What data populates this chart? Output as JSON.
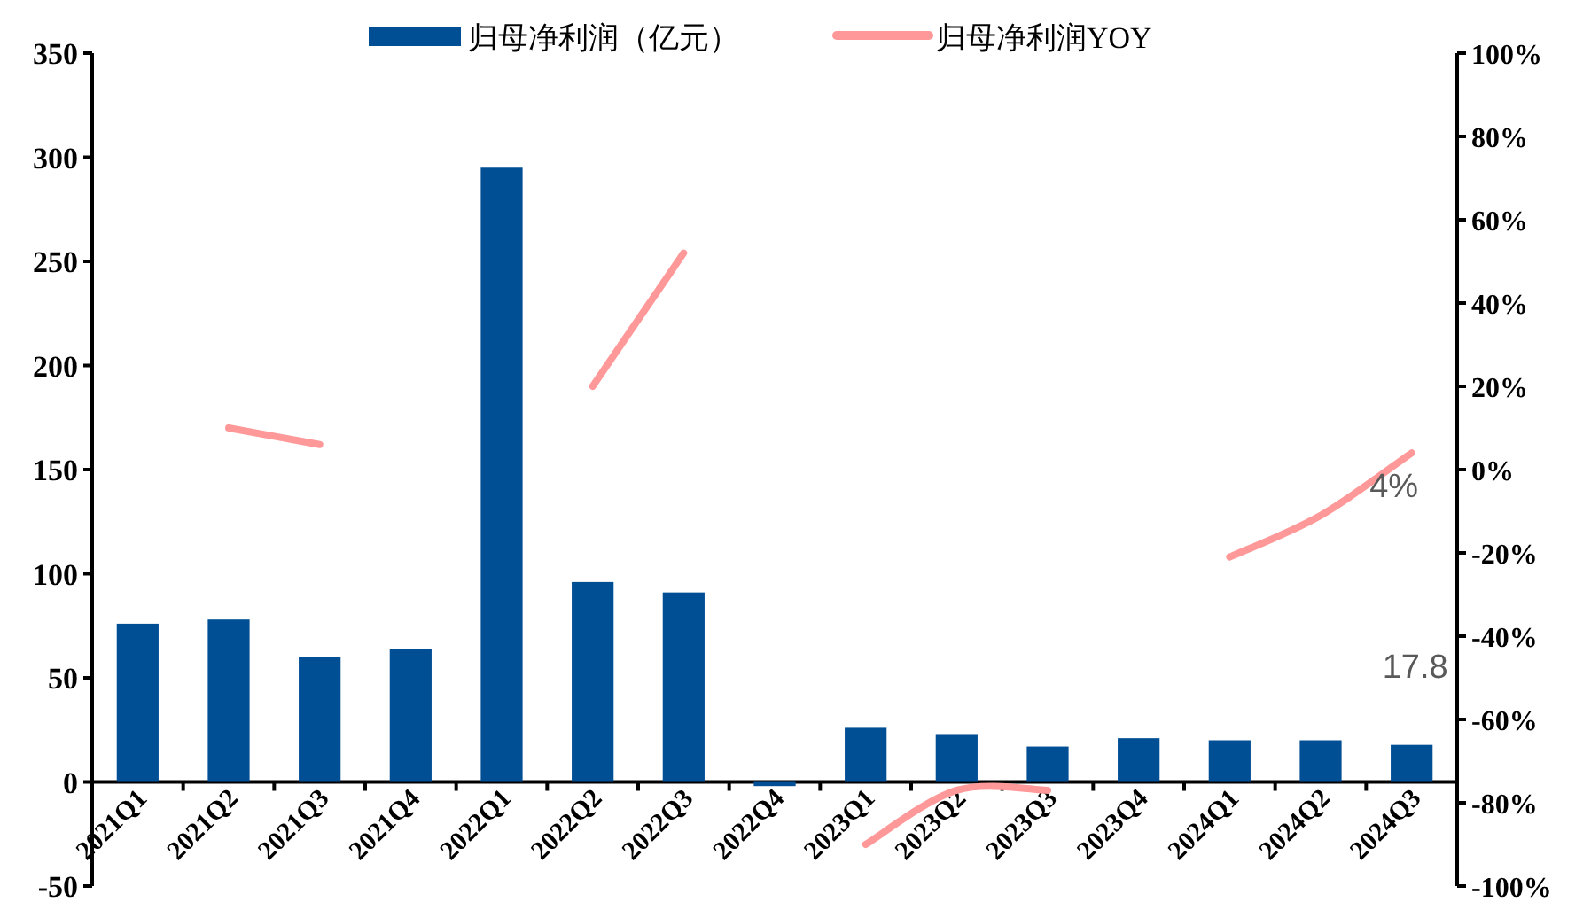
{
  "chart_data": {
    "type": "bar",
    "categories": [
      "2021Q1",
      "2021Q2",
      "2021Q3",
      "2021Q4",
      "2022Q1",
      "2022Q2",
      "2022Q3",
      "2022Q4",
      "2023Q1",
      "2023Q2",
      "2023Q3",
      "2023Q4",
      "2024Q1",
      "2024Q2",
      "2024Q3"
    ],
    "ylim": [
      -50,
      350
    ],
    "yticks": [
      -50,
      0,
      50,
      100,
      150,
      200,
      250,
      300,
      350
    ],
    "y2lim": [
      -100,
      100
    ],
    "y2ticks": [
      {
        "value": -100,
        "label": "-100%"
      },
      {
        "value": -80,
        "label": "-80%"
      },
      {
        "value": -60,
        "label": "-60%"
      },
      {
        "value": -40,
        "label": "-40%"
      },
      {
        "value": -20,
        "label": "-20%"
      },
      {
        "value": 0,
        "label": "0%"
      },
      {
        "value": 20,
        "label": "20%"
      },
      {
        "value": 40,
        "label": "40%"
      },
      {
        "value": 60,
        "label": "60%"
      },
      {
        "value": 80,
        "label": "80%"
      },
      {
        "value": 100,
        "label": "100%"
      }
    ],
    "legend": "top",
    "series": [
      {
        "name": "归母净利润（亿元）",
        "color": "#004f95",
        "values": [
          76,
          78,
          60,
          64,
          295,
          96,
          91,
          -2,
          26,
          23,
          17,
          21,
          20,
          20,
          17.8
        ],
        "value_labels": [
          null,
          null,
          null,
          null,
          null,
          null,
          null,
          null,
          null,
          null,
          null,
          null,
          null,
          null,
          "17.8"
        ]
      },
      {
        "name": "归母净利润YOY",
        "type": "line",
        "axis": "y2",
        "color": "#ff9999",
        "values": [
          null,
          10,
          6,
          null,
          null,
          20,
          52,
          null,
          -90,
          -77,
          -77,
          null,
          -21,
          -11,
          4
        ],
        "value_labels": [
          null,
          null,
          null,
          null,
          null,
          null,
          null,
          null,
          null,
          null,
          null,
          null,
          null,
          null,
          "4%"
        ]
      }
    ]
  }
}
